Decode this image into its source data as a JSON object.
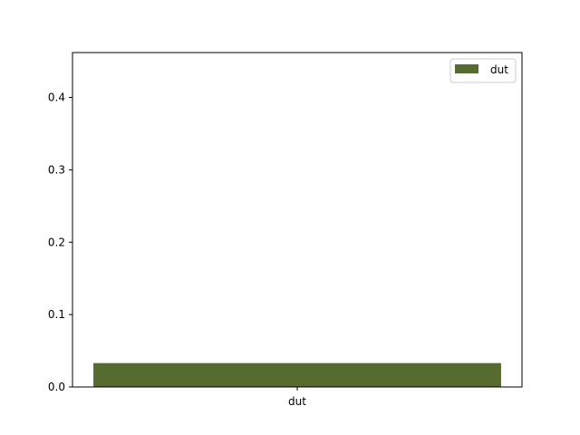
{
  "chart_data": {
    "type": "bar",
    "categories": [
      "dut"
    ],
    "series": [
      {
        "name": "dut",
        "values": [
          0.033
        ],
        "color": "#556b2f"
      }
    ],
    "ylim": [
      0,
      0.462
    ],
    "yticks": [
      0.0,
      0.1,
      0.2,
      0.3,
      0.4
    ],
    "ytick_labels": [
      "0.0",
      "0.1",
      "0.2",
      "0.3",
      "0.4"
    ],
    "grid": false,
    "legend_position": "top-right"
  }
}
